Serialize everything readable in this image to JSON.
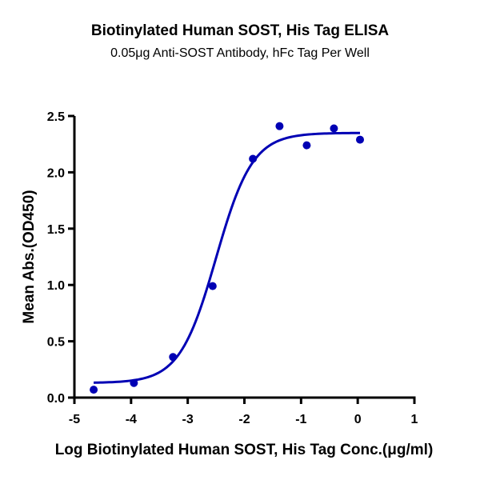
{
  "chart_data": {
    "type": "scatter",
    "title": "Biotinylated Human SOST, His Tag ELISA",
    "subtitle": "0.05μg Anti-SOST Antibody, hFc Tag Per Well",
    "xlabel": "Log Biotinylated Human SOST, His Tag Conc.(μg/ml)",
    "ylabel": "Mean Abs.(OD450)",
    "xlim": [
      -5,
      1
    ],
    "ylim": [
      0,
      2.5
    ],
    "xticks": [
      "-5",
      "-4",
      "-3",
      "-2",
      "-1",
      "0",
      "1"
    ],
    "yticks": [
      "0.0",
      "0.5",
      "1.0",
      "1.5",
      "2.0",
      "2.5"
    ],
    "grid": false,
    "legend": null,
    "series": [
      {
        "name": "Mean Abs. (OD450)",
        "color": "#0000b4",
        "x": [
          -4.66,
          -3.95,
          -3.26,
          -2.56,
          -1.85,
          -1.38,
          -0.9,
          -0.42,
          0.04
        ],
        "y": [
          0.07,
          0.13,
          0.36,
          0.99,
          2.12,
          2.41,
          2.24,
          2.39,
          2.29
        ]
      }
    ],
    "fit": {
      "type": "4PL sigmoidal",
      "bottom": 0.13,
      "top": 2.35,
      "log_ec50": -2.5,
      "hill_slope": 1.35,
      "x_range": [
        -4.66,
        0.04
      ],
      "color": "#0000b4"
    }
  }
}
